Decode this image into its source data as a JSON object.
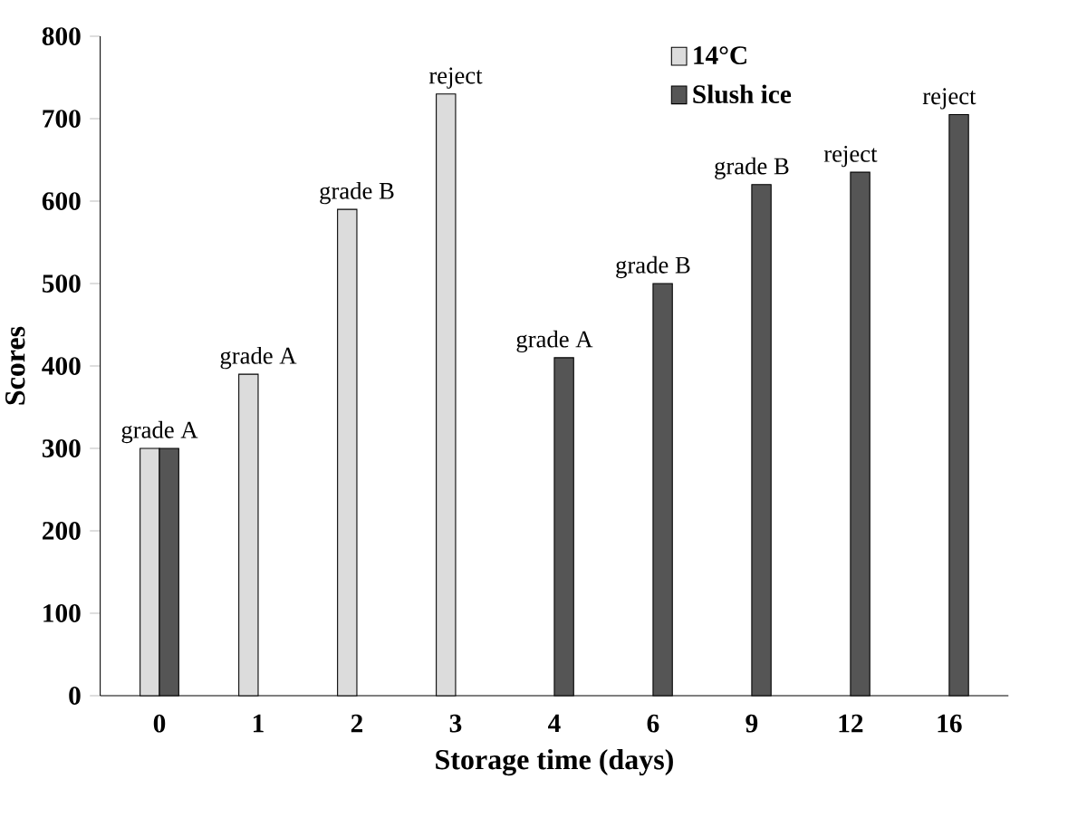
{
  "chart_data": {
    "type": "bar",
    "xlabel": "Storage time (days)",
    "ylabel": "Scores",
    "categories": [
      "0",
      "1",
      "2",
      "3",
      "4",
      "6",
      "9",
      "12",
      "16"
    ],
    "series": [
      {
        "name": "14°C",
        "color": "#dcdcdc",
        "values": [
          300,
          390,
          590,
          730,
          null,
          null,
          null,
          null,
          null
        ]
      },
      {
        "name": "Slush ice",
        "color": "#555555",
        "values": [
          300,
          null,
          null,
          null,
          410,
          500,
          620,
          635,
          705
        ]
      }
    ],
    "ylim": [
      0,
      800
    ],
    "yticks": [
      0,
      100,
      200,
      300,
      400,
      500,
      600,
      700,
      800
    ],
    "legend": "top",
    "grid": false,
    "annotations": [
      {
        "text": "grade A",
        "x": "0",
        "y": 300
      },
      {
        "text": "grade A",
        "x": "1",
        "y": 390
      },
      {
        "text": "grade B",
        "x": "2",
        "y": 590
      },
      {
        "text": "reject",
        "x": "3",
        "y": 730
      },
      {
        "text": "grade A",
        "x": "4",
        "y": 410
      },
      {
        "text": "grade B",
        "x": "6",
        "y": 500
      },
      {
        "text": "grade B",
        "x": "9",
        "y": 620
      },
      {
        "text": "reject",
        "x": "12",
        "y": 635
      },
      {
        "text": "reject",
        "x": "16",
        "y": 705
      }
    ]
  }
}
